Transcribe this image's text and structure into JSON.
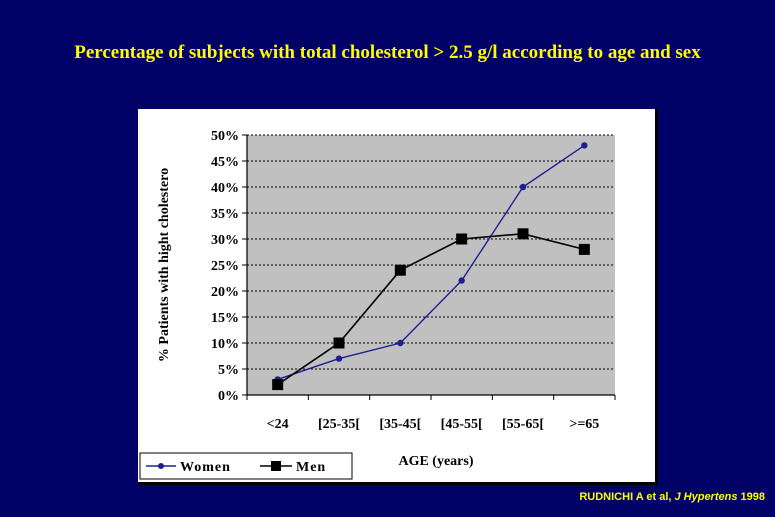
{
  "slide": {
    "title": "Percentage of subjects with total cholesterol > 2.5 g/l according to age and sex"
  },
  "citation": {
    "authors": "RUDNICHI A et al, ",
    "journal": "J Hypertens",
    "year": " 1998"
  },
  "colors": {
    "background": "#000066",
    "title": "#ffff00",
    "women_series": "#1f1f8f",
    "men_series": "#000000",
    "plot_area": "#c0c0c0"
  },
  "chart_data": {
    "type": "line",
    "title": "",
    "xlabel": "AGE (years)",
    "ylabel": "% Patients with hight cholestero",
    "categories": [
      "<24",
      "[25-35[",
      "[35-45[",
      "[45-55[",
      "[55-65[",
      ">=65"
    ],
    "ylim": [
      0,
      50
    ],
    "yticks": [
      "0%",
      "5%",
      "10%",
      "15%",
      "20%",
      "25%",
      "30%",
      "35%",
      "40%",
      "45%",
      "50%"
    ],
    "grid": "horizontal dashed",
    "legend": "bottom-left",
    "series": [
      {
        "name": "Women",
        "marker": "circle",
        "values": [
          3,
          7,
          10,
          22,
          40,
          48
        ]
      },
      {
        "name": "Men",
        "marker": "square",
        "values": [
          2,
          10,
          24,
          30,
          31,
          28
        ]
      }
    ]
  }
}
